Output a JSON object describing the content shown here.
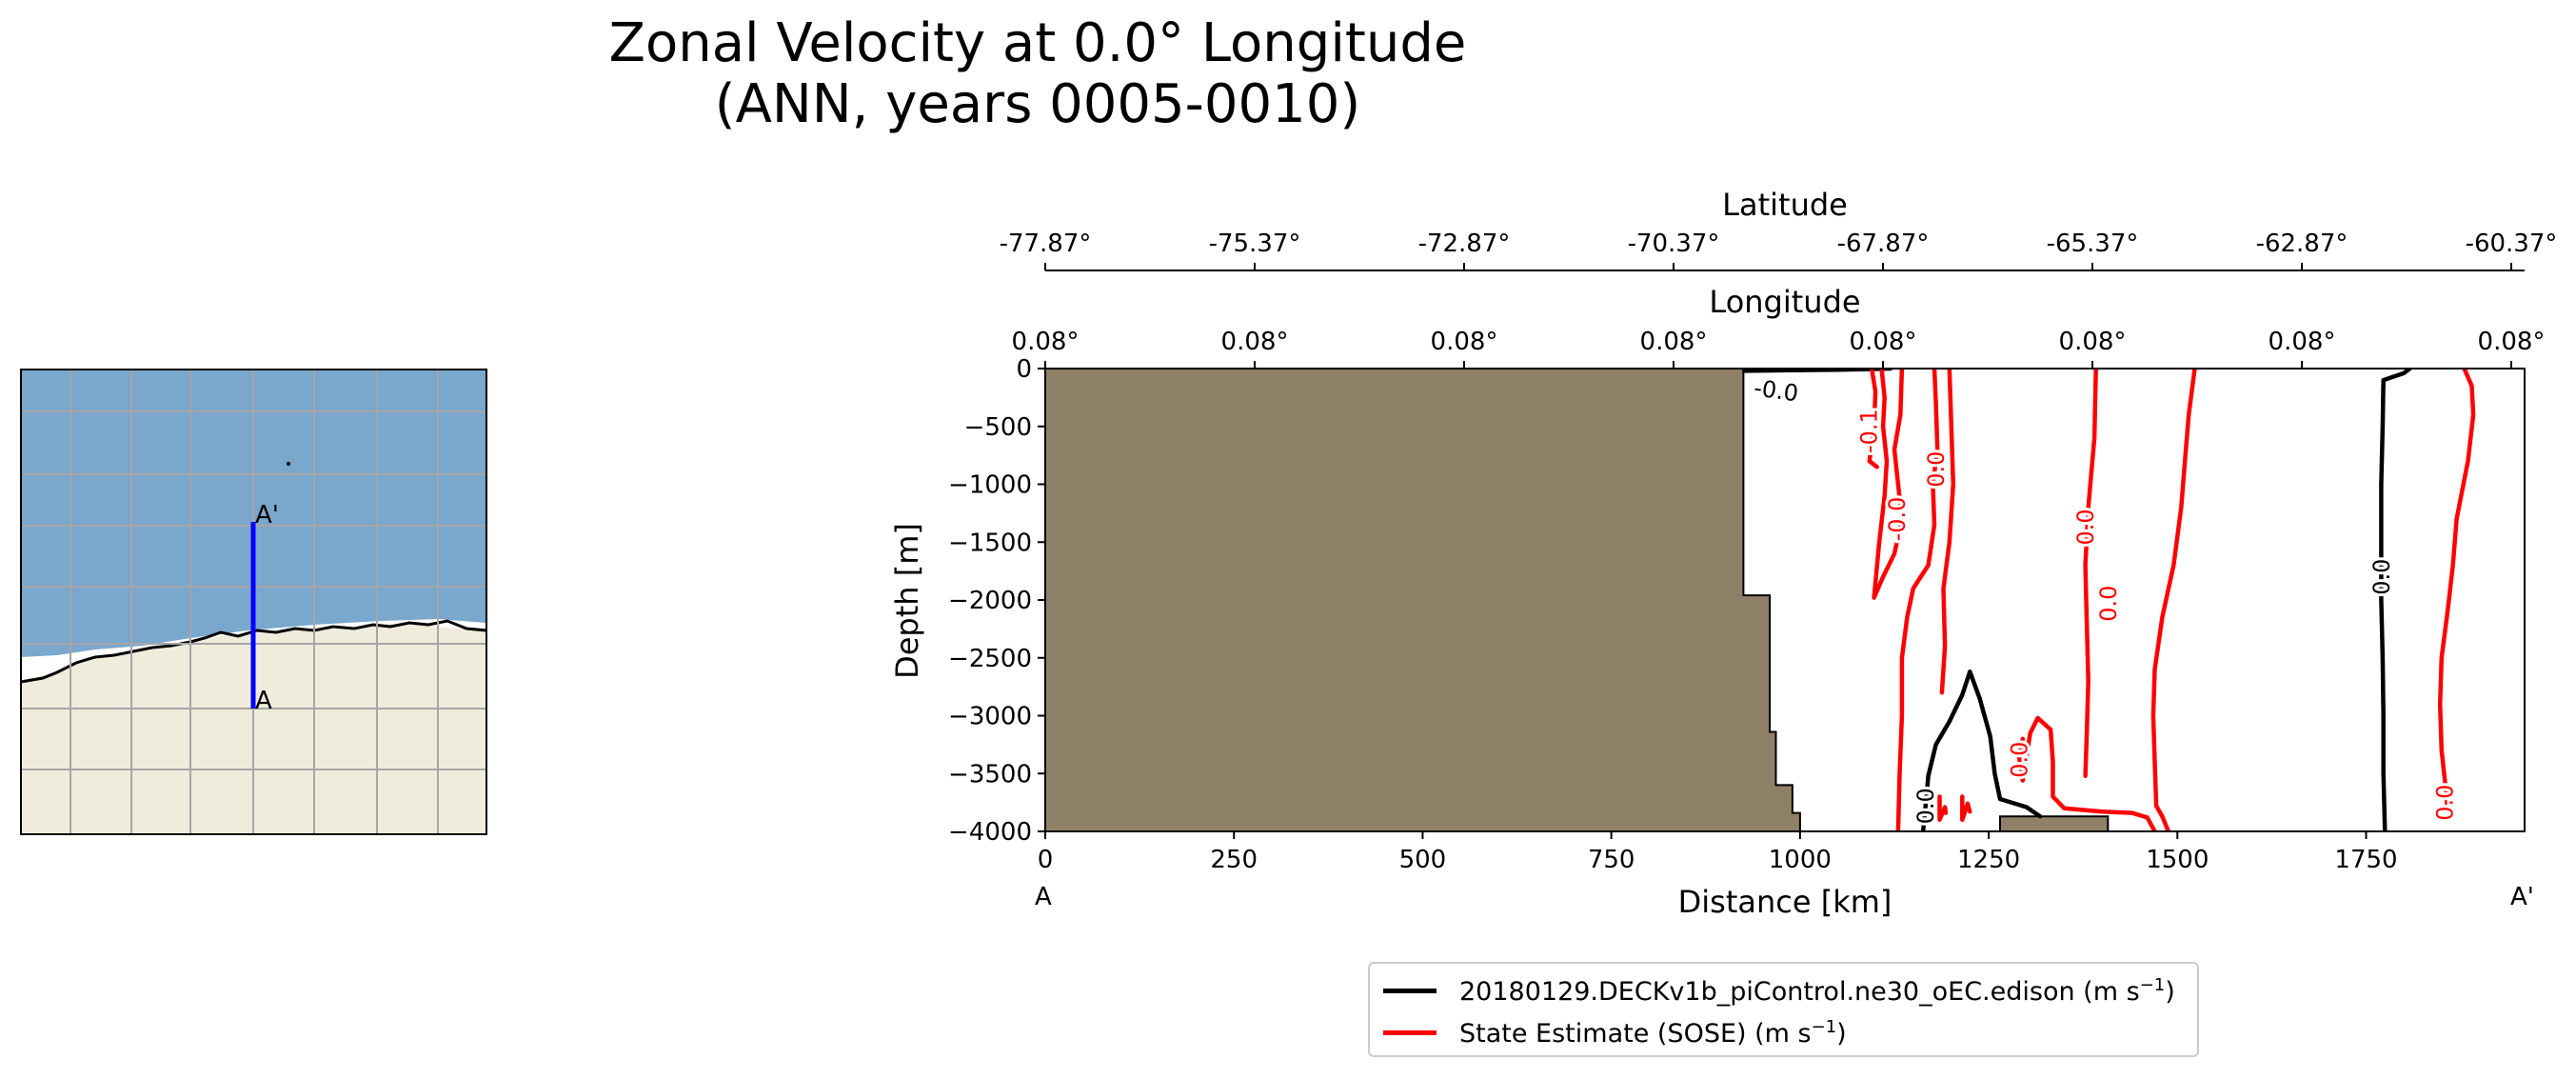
{
  "title": {
    "line1": "Zonal Velocity at 0.0° Longitude",
    "line2": "(ANN, years 0005-0010)"
  },
  "inset_map": {
    "marker_start": "A",
    "marker_end": "A'"
  },
  "chart_data": {
    "type": "line",
    "subtype": "depth-section contour",
    "xlabel": "Distance [km]",
    "ylabel": "Depth [m]",
    "xlim": [
      0,
      1960
    ],
    "ylim": [
      -4000,
      0
    ],
    "x_ticks": [
      0,
      250,
      500,
      750,
      1000,
      1250,
      1500,
      1750
    ],
    "y_ticks": [
      0,
      -500,
      -1000,
      -1500,
      -2000,
      -2500,
      -3000,
      -3500,
      -4000
    ],
    "section_end_labels": {
      "start": "A",
      "end": "A'"
    },
    "top_axes": {
      "latitude": {
        "label": "Latitude",
        "ticks": [
          "-77.87°",
          "-75.37°",
          "-72.87°",
          "-70.37°",
          "-67.87°",
          "-65.37°",
          "-62.87°",
          "-60.37°"
        ]
      },
      "longitude": {
        "label": "Longitude",
        "ticks": [
          "0.08°",
          "0.08°",
          "0.08°",
          "0.08°",
          "0.08°",
          "0.08°",
          "0.08°",
          "0.08°"
        ]
      }
    },
    "bathymetry": {
      "color": "#8f8068",
      "profile": [
        [
          0,
          0
        ],
        [
          925,
          0
        ],
        [
          925,
          -1960
        ],
        [
          960,
          -1960
        ],
        [
          960,
          -3140
        ],
        [
          968,
          -3140
        ],
        [
          968,
          -3600
        ],
        [
          990,
          -3600
        ],
        [
          990,
          -3840
        ],
        [
          1000,
          -3840
        ],
        [
          1000,
          -4000
        ],
        [
          0,
          -4000
        ]
      ],
      "bump": [
        [
          1265,
          -4000
        ],
        [
          1265,
          -3870
        ],
        [
          1408,
          -3870
        ],
        [
          1408,
          -4000
        ]
      ]
    },
    "series": [
      {
        "name": "20180129.DECKv1b_piControl.ne30_oEC.edison (m s",
        "color": "#000000",
        "contours": [
          [
            [
              926,
              -20
            ],
            [
              990,
              -15
            ],
            [
              1050,
              -10
            ],
            [
              1090,
              -5
            ],
            [
              1120,
              0
            ]
          ],
          [
            [
              1163,
              -4000
            ],
            [
              1166,
              -3800
            ],
            [
              1170,
              -3520
            ],
            [
              1180,
              -3250
            ],
            [
              1198,
              -3050
            ],
            [
              1215,
              -2820
            ],
            [
              1225,
              -2620
            ],
            [
              1238,
              -2850
            ],
            [
              1252,
              -3180
            ],
            [
              1258,
              -3500
            ],
            [
              1265,
              -3720
            ],
            [
              1300,
              -3790
            ],
            [
              1318,
              -3870
            ]
          ],
          [
            [
              1775,
              -4000
            ],
            [
              1773,
              -3500
            ],
            [
              1773,
              -3000
            ],
            [
              1772,
              -2500
            ],
            [
              1770,
              -2000
            ],
            [
              1770,
              -1500
            ],
            [
              1770,
              -1000
            ],
            [
              1772,
              -500
            ],
            [
              1773,
              -100
            ],
            [
              1800,
              -40
            ],
            [
              1808,
              0
            ]
          ]
        ],
        "labels": [
          {
            "text": "-0.0",
            "x": 968,
            "y": -200
          },
          {
            "text": "0.0",
            "x": 1168,
            "y": -3780
          },
          {
            "text": "0.0",
            "x": 1772,
            "y": -1800
          }
        ]
      },
      {
        "name": "State Estimate (SOSE) (m s",
        "color": "#ff0000",
        "contours": [
          [
            [
              1095,
              0
            ],
            [
              1100,
              -200
            ],
            [
              1098,
              -500
            ],
            [
              1092,
              -800
            ],
            [
              1102,
              -850
            ]
          ],
          [
            [
              1108,
              0
            ],
            [
              1112,
              -250
            ],
            [
              1110,
              -500
            ],
            [
              1115,
              -800
            ],
            [
              1112,
              -1100
            ],
            [
              1105,
              -1500
            ],
            [
              1100,
              -1850
            ],
            [
              1098,
              -1980
            ],
            [
              1110,
              -1800
            ],
            [
              1125,
              -1600
            ],
            [
              1135,
              -1300
            ],
            [
              1130,
              -1000
            ],
            [
              1125,
              -700
            ],
            [
              1133,
              -400
            ],
            [
              1135,
              0
            ]
          ],
          [
            [
              1178,
              0
            ],
            [
              1180,
              -300
            ],
            [
              1182,
              -700
            ],
            [
              1176,
              -1000
            ],
            [
              1178,
              -1350
            ],
            [
              1170,
              -1700
            ],
            [
              1150,
              -1900
            ],
            [
              1142,
              -2150
            ],
            [
              1135,
              -2500
            ],
            [
              1135,
              -3000
            ],
            [
              1132,
              -3500
            ],
            [
              1130,
              -4000
            ]
          ],
          [
            [
              1198,
              0
            ],
            [
              1200,
              -400
            ],
            [
              1203,
              -1000
            ],
            [
              1198,
              -1500
            ],
            [
              1190,
              -1900
            ],
            [
              1192,
              -2400
            ],
            [
              1188,
              -2800
            ]
          ],
          [
            [
              1185,
              -3700
            ],
            [
              1185,
              -3900
            ],
            [
              1192,
              -3790
            ],
            [
              1193,
              -3840
            ]
          ],
          [
            [
              1215,
              -3700
            ],
            [
              1215,
              -3900
            ],
            [
              1222,
              -3760
            ],
            [
              1225,
              -3830
            ]
          ],
          [
            [
              1295,
              -3200
            ],
            [
              1290,
              -3350
            ],
            [
              1295,
              -3560
            ],
            [
              1305,
              -3150
            ],
            [
              1315,
              -3020
            ],
            [
              1332,
              -3120
            ],
            [
              1335,
              -3400
            ],
            [
              1335,
              -3700
            ],
            [
              1350,
              -3800
            ],
            [
              1400,
              -3830
            ],
            [
              1440,
              -3840
            ],
            [
              1460,
              -3880
            ],
            [
              1470,
              -4000
            ]
          ],
          [
            [
              1392,
              0
            ],
            [
              1390,
              -600
            ],
            [
              1382,
              -1200
            ],
            [
              1378,
              -1700
            ],
            [
              1380,
              -2200
            ],
            [
              1382,
              -2700
            ],
            [
              1380,
              -3150
            ],
            [
              1378,
              -3520
            ]
          ],
          [
            [
              1523,
              0
            ],
            [
              1515,
              -400
            ],
            [
              1510,
              -800
            ],
            [
              1505,
              -1200
            ],
            [
              1495,
              -1700
            ],
            [
              1480,
              -2150
            ],
            [
              1470,
              -2600
            ],
            [
              1468,
              -3000
            ],
            [
              1470,
              -3400
            ],
            [
              1472,
              -3780
            ],
            [
              1480,
              -3870
            ],
            [
              1488,
              -4000
            ]
          ],
          [
            [
              1880,
              0
            ],
            [
              1890,
              -150
            ],
            [
              1892,
              -400
            ],
            [
              1885,
              -800
            ],
            [
              1870,
              -1300
            ],
            [
              1865,
              -1700
            ],
            [
              1858,
              -2100
            ],
            [
              1850,
              -2500
            ],
            [
              1848,
              -2900
            ],
            [
              1850,
              -3300
            ],
            [
              1855,
              -3600
            ],
            [
              1858,
              -3820
            ]
          ]
        ],
        "labels": [
          {
            "text": "-0.1",
            "x": 1093,
            "y": -540
          },
          {
            "text": "-0.0",
            "x": 1130,
            "y": -1300
          },
          {
            "text": "0.0",
            "x": 1182,
            "y": -870
          },
          {
            "text": "0.0",
            "x": 1380,
            "y": -1370
          },
          {
            "text": "0.0",
            "x": 1410,
            "y": -2030
          },
          {
            "text": "0.0",
            "x": 1292,
            "y": -3380
          },
          {
            "text": "0.0",
            "x": 1856,
            "y": -3750
          }
        ]
      }
    ],
    "legend": {
      "placement": "below"
    }
  }
}
